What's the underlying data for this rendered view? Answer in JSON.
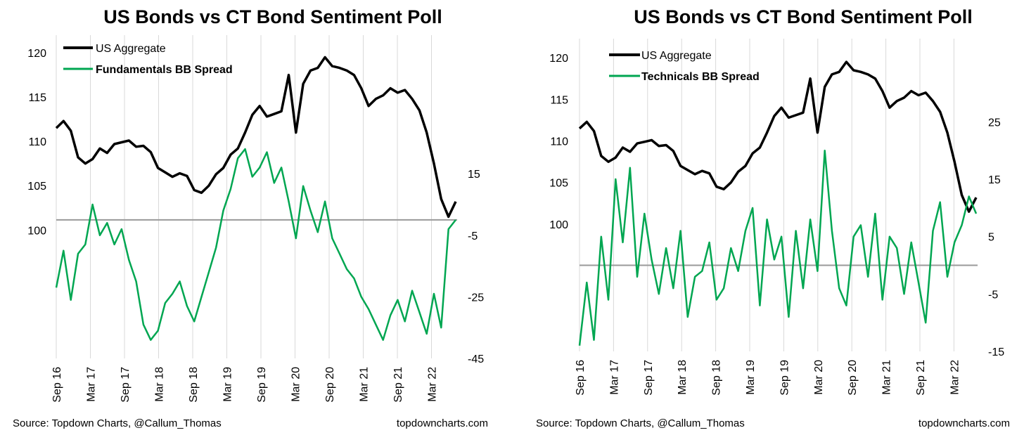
{
  "colors": {
    "black_series": "#000000",
    "green_series": "#00a651",
    "zero_line": "#9a9a9a",
    "grid": "#d9d9d9"
  },
  "chart_data": [
    {
      "type": "line",
      "title": "US Bonds vs CT Bond Sentiment Poll",
      "x_ticks": [
        "Sep 16",
        "Mar 17",
        "Sep 17",
        "Mar 18",
        "Sep 18",
        "Mar 19",
        "Sep 19",
        "Mar 20",
        "Sep 20",
        "Mar 21",
        "Sep 21",
        "Mar 22"
      ],
      "y_left_ticks": [
        100,
        105,
        110,
        115,
        120
      ],
      "y_left_range": [
        85.5,
        122
      ],
      "y_right_ticks": [
        15,
        -5,
        -25,
        -45
      ],
      "y_right_range": [
        -45,
        60
      ],
      "legend_position": "top-left",
      "grid": "vertical",
      "series": [
        {
          "name": "US Aggregate",
          "axis": "left",
          "values": [
            111.5,
            112.3,
            111.2,
            108.2,
            107.5,
            108.0,
            109.2,
            108.7,
            109.7,
            109.9,
            110.1,
            109.4,
            109.5,
            108.8,
            107.0,
            106.5,
            106.0,
            106.4,
            106.1,
            104.5,
            104.2,
            105.0,
            106.3,
            107.0,
            108.5,
            109.2,
            111.0,
            113.0,
            114.0,
            112.8,
            113.1,
            113.4,
            117.5,
            111.0,
            116.5,
            118.0,
            118.3,
            119.5,
            118.5,
            118.3,
            118.0,
            117.5,
            116.0,
            114.0,
            114.8,
            115.2,
            116.0,
            115.5,
            115.8,
            114.8,
            113.5,
            111.0,
            107.5,
            103.5,
            101.5,
            103.2
          ]
        },
        {
          "name": "Fundamentals BB Spread",
          "axis": "right",
          "values": [
            -22,
            -10,
            -26,
            -11,
            -8,
            5,
            -5,
            -1,
            -8,
            -3,
            -13,
            -20,
            -34,
            -39,
            -36,
            -27,
            -24,
            -20,
            -28,
            -33,
            -25,
            -17,
            -9,
            3,
            10,
            20,
            23,
            14,
            17,
            22,
            12,
            17,
            6,
            -6,
            11,
            3,
            -4,
            6,
            -6,
            -11,
            -16,
            -19,
            -25,
            -29,
            -34,
            -39,
            -31,
            -26,
            -33,
            -23,
            -30,
            -37,
            -24,
            -35,
            -3,
            0
          ]
        }
      ]
    },
    {
      "type": "line",
      "title": "US Bonds vs CT Bond Sentiment Poll",
      "x_ticks": [
        "Sep 16",
        "Mar 17",
        "Sep 17",
        "Mar 18",
        "Sep 18",
        "Mar 19",
        "Sep 19",
        "Mar 20",
        "Sep 20",
        "Mar 21",
        "Sep 21",
        "Mar 22"
      ],
      "y_left_ticks": [
        100,
        105,
        110,
        115,
        120
      ],
      "y_left_range": [
        84.7,
        122.3
      ],
      "y_right_ticks": [
        25,
        15,
        5,
        -5,
        -15
      ],
      "y_right_range": [
        -15,
        39.5
      ],
      "legend_position": "top-left",
      "grid": "vertical",
      "series": [
        {
          "name": "US Aggregate",
          "axis": "left",
          "values": [
            111.5,
            112.3,
            111.2,
            108.2,
            107.5,
            108.0,
            109.2,
            108.7,
            109.7,
            109.9,
            110.1,
            109.4,
            109.5,
            108.8,
            107.0,
            106.5,
            106.0,
            106.4,
            106.1,
            104.5,
            104.2,
            105.0,
            106.3,
            107.0,
            108.5,
            109.2,
            111.0,
            113.0,
            114.0,
            112.8,
            113.1,
            113.4,
            117.5,
            111.0,
            116.5,
            118.0,
            118.3,
            119.5,
            118.5,
            118.3,
            118.0,
            117.5,
            116.0,
            114.0,
            114.8,
            115.2,
            116.0,
            115.5,
            115.8,
            114.8,
            113.5,
            111.0,
            107.5,
            103.5,
            101.5,
            103.2
          ]
        },
        {
          "name": "Technicals BB Spread",
          "axis": "right",
          "values": [
            -14,
            -3,
            -13,
            5,
            -6,
            15,
            4,
            17,
            -2,
            9,
            1,
            -5,
            3,
            -4,
            6,
            -9,
            -2,
            -1,
            4,
            -6,
            -4,
            3,
            -1,
            6,
            10,
            -7,
            8,
            1,
            5,
            -9,
            6,
            -4,
            8,
            -1,
            20,
            6,
            -4,
            -7,
            5,
            7,
            -2,
            9,
            -6,
            5,
            3,
            -5,
            4,
            -3,
            -10,
            6,
            11,
            -2,
            4,
            7,
            12,
            9
          ]
        }
      ]
    }
  ],
  "panels": [
    {
      "title": "US Bonds vs CT Bond Sentiment Poll",
      "legend": [
        "US Aggregate",
        "Fundamentals BB Spread"
      ],
      "source": "Source: Topdown Charts, @Callum_Thomas",
      "website": "topdowncharts.com"
    },
    {
      "title": "US Bonds vs CT Bond Sentiment Poll",
      "legend": [
        "US Aggregate",
        "Technicals BB Spread"
      ],
      "source": "Source: Topdown Charts, @Callum_Thomas",
      "website": "topdowncharts.com"
    }
  ]
}
